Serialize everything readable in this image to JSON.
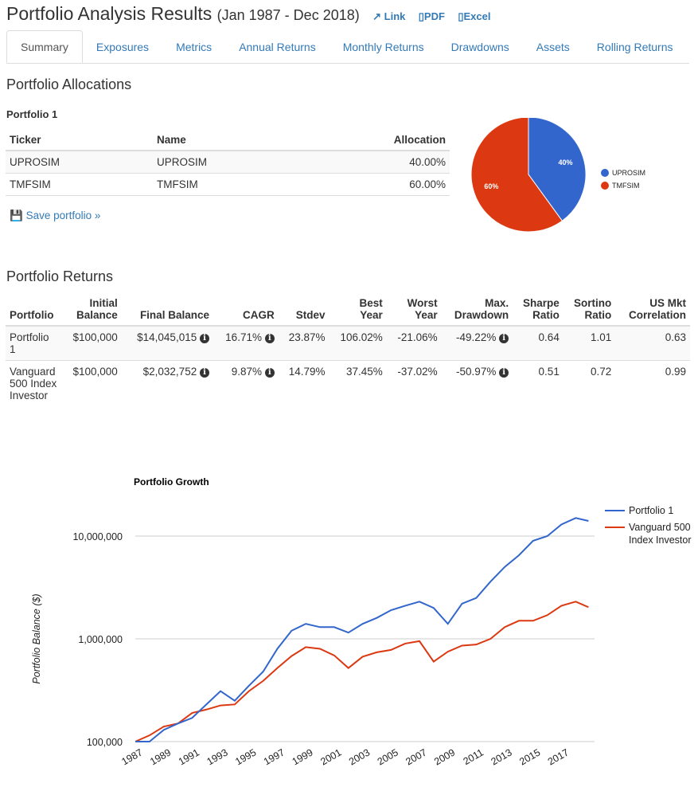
{
  "header": {
    "title": "Portfolio Analysis Results",
    "range": "(Jan 1987 - Dec 2018)",
    "links": [
      "Link",
      "PDF",
      "Excel"
    ]
  },
  "tabs": [
    "Summary",
    "Exposures",
    "Metrics",
    "Annual Returns",
    "Monthly Returns",
    "Drawdowns",
    "Assets",
    "Rolling Returns"
  ],
  "allocations": {
    "heading": "Portfolio Allocations",
    "portfolio": "Portfolio 1",
    "columns": [
      "Ticker",
      "Name",
      "Allocation"
    ],
    "rows": [
      [
        "UPROSIM",
        "UPROSIM",
        "40.00%"
      ],
      [
        "TMFSIM",
        "TMFSIM",
        "60.00%"
      ]
    ],
    "save": "Save portfolio »"
  },
  "pie": {
    "slices": [
      {
        "label": "UPROSIM",
        "value": 40,
        "pct": "40%",
        "color": "#3366cc"
      },
      {
        "label": "TMFSIM",
        "value": 60,
        "pct": "60%",
        "color": "#dc3912"
      }
    ]
  },
  "returns": {
    "heading": "Portfolio Returns",
    "columns": [
      [
        "",
        "Portfolio"
      ],
      [
        "Initial",
        "Balance"
      ],
      [
        "",
        "Final Balance"
      ],
      [
        "",
        "CAGR"
      ],
      [
        "",
        "Stdev"
      ],
      [
        "Best",
        "Year"
      ],
      [
        "Worst",
        "Year"
      ],
      [
        "Max.",
        "Drawdown"
      ],
      [
        "Sharpe",
        "Ratio"
      ],
      [
        "Sortino",
        "Ratio"
      ],
      [
        "US Mkt",
        "Correlation"
      ]
    ],
    "rows": [
      [
        "Portfolio 1",
        "$100,000",
        "$14,045,015",
        "16.71%",
        "23.87%",
        "106.02%",
        "-21.06%",
        "-49.22%",
        "0.64",
        "1.01",
        "0.63"
      ],
      [
        "Vanguard 500 Index Investor",
        "$100,000",
        "$2,032,752",
        "9.87%",
        "14.79%",
        "37.45%",
        "-37.02%",
        "-50.97%",
        "0.51",
        "0.72",
        "0.99"
      ]
    ]
  },
  "chart_data": {
    "type": "line",
    "title": "Portfolio Growth",
    "ylabel": "Portfolio Balance ($)",
    "yscale": "log",
    "ylim": [
      100000,
      17000000
    ],
    "yticks": [
      "100,000",
      "1,000,000",
      "10,000,000"
    ],
    "ytick_values": [
      100000,
      1000000,
      10000000
    ],
    "xticks": [
      "1987",
      "1989",
      "1991",
      "1993",
      "1995",
      "1997",
      "1999",
      "2001",
      "2003",
      "2005",
      "2007",
      "2009",
      "2011",
      "2013",
      "2015",
      "2017"
    ],
    "x": [
      1987,
      1988,
      1989,
      1990,
      1991,
      1992,
      1993,
      1994,
      1995,
      1996,
      1997,
      1998,
      1999,
      2000,
      2001,
      2002,
      2003,
      2004,
      2005,
      2006,
      2007,
      2008,
      2009,
      2010,
      2011,
      2012,
      2013,
      2014,
      2015,
      2016,
      2017,
      2018,
      2019
    ],
    "series": [
      {
        "name": "Portfolio 1",
        "color": "#3366cc",
        "values": [
          100000,
          100000,
          130000,
          150000,
          170000,
          230000,
          310000,
          250000,
          350000,
          480000,
          800000,
          1200000,
          1400000,
          1300000,
          1300000,
          1150000,
          1400000,
          1600000,
          1900000,
          2100000,
          2300000,
          2000000,
          1400000,
          2200000,
          2500000,
          3600000,
          5000000,
          6500000,
          9000000,
          10000000,
          13000000,
          15000000,
          14045015
        ]
      },
      {
        "name": "Vanguard 500 Index Investor",
        "color": "#dc3912",
        "values": [
          100000,
          115000,
          140000,
          150000,
          190000,
          205000,
          225000,
          230000,
          310000,
          390000,
          520000,
          680000,
          830000,
          800000,
          690000,
          520000,
          670000,
          740000,
          780000,
          900000,
          950000,
          600000,
          750000,
          860000,
          880000,
          1000000,
          1300000,
          1500000,
          1500000,
          1700000,
          2100000,
          2300000,
          2032752
        ]
      }
    ]
  }
}
